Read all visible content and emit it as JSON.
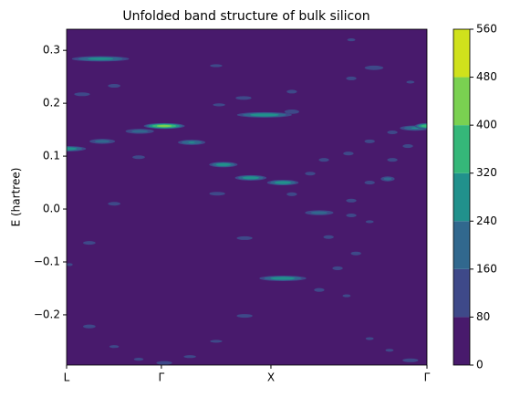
{
  "chart_data": {
    "type": "contour",
    "title": "Unfolded band structure of bulk silicon",
    "y_label": "E (hartree)",
    "xlim": [
      0,
      1
    ],
    "xticks": [
      {
        "value": 0,
        "label": "L"
      },
      {
        "value": 0.263,
        "label": "Γ"
      },
      {
        "value": 0.567,
        "label": "X"
      },
      {
        "value": 1,
        "label": "Γ"
      }
    ],
    "ylim": [
      -0.295,
      0.34
    ],
    "yticks": [
      {
        "value": -0.2,
        "label": "−0.2"
      },
      {
        "value": -0.1,
        "label": "−0.1"
      },
      {
        "value": 0,
        "label": "0.0"
      },
      0.1,
      0.2,
      0.3
    ],
    "colorbar": {
      "ticks": [
        0,
        80,
        160,
        240,
        320,
        400,
        480,
        560
      ],
      "colors": [
        "#481a6c",
        "#3e4989",
        "#31688e",
        "#21918c",
        "#35b779",
        "#7ad151",
        "#d0e11c"
      ]
    },
    "blobs": [
      {
        "x": 0.094,
        "w": 0.094,
        "y": 0.284,
        "z": 280
      },
      {
        "x": 0,
        "w": 0.063,
        "y": 0.114,
        "z": 300
      },
      {
        "x": 0.043,
        "w": 0.038,
        "y": 0.217,
        "z": 120
      },
      {
        "x": 0.132,
        "w": 0.03,
        "y": 0.233,
        "z": 120
      },
      {
        "x": 0.099,
        "w": 0.046,
        "y": 0.128,
        "z": 200
      },
      {
        "x": 0.203,
        "w": 0.051,
        "y": 0.147,
        "z": 200
      },
      {
        "x": 0.271,
        "w": 0.063,
        "y": 0.157,
        "z": 450
      },
      {
        "x": 0.347,
        "w": 0.046,
        "y": 0.126,
        "z": 250
      },
      {
        "x": 0.2,
        "w": 0.03,
        "y": 0.098,
        "z": 120
      },
      {
        "x": 0.435,
        "w": 0.046,
        "y": 0.084,
        "z": 300
      },
      {
        "x": 0.415,
        "w": 0.038,
        "y": 0.271,
        "z": 100
      },
      {
        "x": 0.491,
        "w": 0.038,
        "y": 0.21,
        "z": 120
      },
      {
        "x": 0.423,
        "w": 0.038,
        "y": 0.197,
        "z": 100
      },
      {
        "x": 0.549,
        "w": 0.089,
        "y": 0.178,
        "z": 300
      },
      {
        "x": 0.625,
        "w": 0.03,
        "y": 0.184,
        "z": 150
      },
      {
        "x": 0.511,
        "w": 0.051,
        "y": 0.059,
        "z": 300
      },
      {
        "x": 0.6,
        "w": 0.051,
        "y": 0.05,
        "z": 300
      },
      {
        "x": 0.418,
        "w": 0.038,
        "y": 0.029,
        "z": 120
      },
      {
        "x": 0.625,
        "w": 0.025,
        "y": 0.028,
        "z": 120
      },
      {
        "x": 0.132,
        "w": 0.03,
        "y": 0.01,
        "z": 120
      },
      {
        "x": 0.79,
        "w": 0.025,
        "y": 0.32,
        "z": 100
      },
      {
        "x": 0.853,
        "w": 0.038,
        "y": 0.267,
        "z": 150
      },
      {
        "x": 0.79,
        "w": 0.025,
        "y": 0.247,
        "z": 120
      },
      {
        "x": 0.625,
        "w": 0.025,
        "y": 0.222,
        "z": 120
      },
      {
        "x": 0.954,
        "w": 0.025,
        "y": 0.24,
        "z": 100
      },
      {
        "x": 0.904,
        "w": 0.025,
        "y": 0.145,
        "z": 120
      },
      {
        "x": 0.967,
        "w": 0.051,
        "y": 0.153,
        "z": 250
      },
      {
        "x": 1,
        "w": 0.038,
        "y": 0.157,
        "z": 400
      },
      {
        "x": 0.947,
        "w": 0.025,
        "y": 0.119,
        "z": 120
      },
      {
        "x": 0.904,
        "w": 0.025,
        "y": 0.093,
        "z": 120
      },
      {
        "x": 0.782,
        "w": 0.025,
        "y": 0.105,
        "z": 120
      },
      {
        "x": 0.841,
        "w": 0.025,
        "y": 0.128,
        "z": 120
      },
      {
        "x": 0.714,
        "w": 0.025,
        "y": 0.093,
        "z": 120
      },
      {
        "x": 0.676,
        "w": 0.025,
        "y": 0.067,
        "z": 120
      },
      {
        "x": 0.891,
        "w": 0.025,
        "y": 0.057,
        "z": 200
      },
      {
        "x": 0.841,
        "w": 0.025,
        "y": 0.05,
        "z": 120
      },
      {
        "x": 0.79,
        "w": 0.025,
        "y": 0.016,
        "z": 120
      },
      {
        "x": 0.701,
        "w": 0.051,
        "y": -0.007,
        "z": 200
      },
      {
        "x": 0.79,
        "w": 0.025,
        "y": -0.012,
        "z": 120
      },
      {
        "x": 0.841,
        "w": 0.025,
        "y": -0.024,
        "z": 100
      },
      {
        "x": 0.727,
        "w": 0.025,
        "y": -0.053,
        "z": 120
      },
      {
        "x": 0.494,
        "w": 0.038,
        "y": -0.055,
        "z": 120
      },
      {
        "x": 0.063,
        "w": 0.03,
        "y": -0.064,
        "z": 120
      },
      {
        "x": 0.803,
        "w": 0.025,
        "y": -0.084,
        "z": 120
      },
      {
        "x": 0.752,
        "w": 0.025,
        "y": -0.112,
        "z": 120
      },
      {
        "x": 0.6,
        "w": 0.076,
        "y": -0.131,
        "z": 300
      },
      {
        "x": 0.701,
        "w": 0.025,
        "y": -0.153,
        "z": 120
      },
      {
        "x": 0.008,
        "w": 0.02,
        "y": -0.105,
        "z": 100
      },
      {
        "x": 0.494,
        "w": 0.038,
        "y": -0.202,
        "z": 120
      },
      {
        "x": 0.777,
        "w": 0.025,
        "y": -0.164,
        "z": 100
      },
      {
        "x": 0.063,
        "w": 0.03,
        "y": -0.222,
        "z": 120
      },
      {
        "x": 0.415,
        "w": 0.038,
        "y": -0.25,
        "z": 100
      },
      {
        "x": 0.841,
        "w": 0.025,
        "y": -0.245,
        "z": 100
      },
      {
        "x": 0.896,
        "w": 0.025,
        "y": -0.267,
        "z": 100
      },
      {
        "x": 0.132,
        "w": 0.03,
        "y": -0.26,
        "z": 100
      },
      {
        "x": 0.2,
        "w": 0.03,
        "y": -0.284,
        "z": 100
      },
      {
        "x": 0.342,
        "w": 0.038,
        "y": -0.279,
        "z": 100
      },
      {
        "x": 0.271,
        "w": 0.038,
        "y": -0.291,
        "z": 120
      },
      {
        "x": 0.954,
        "w": 0.038,
        "y": -0.286,
        "z": 120
      }
    ]
  }
}
